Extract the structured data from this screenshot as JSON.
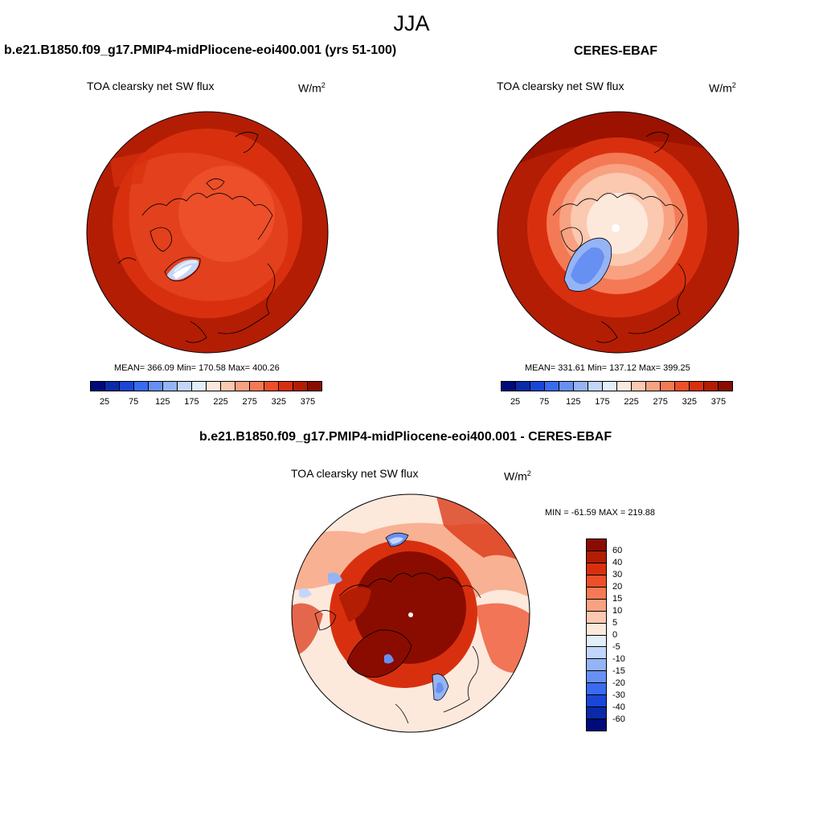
{
  "title": "JJA",
  "panels": [
    {
      "heading": "b.e21.B1850.f09_g17.PMIP4-midPliocene-eoi400.001 (yrs 51-100)",
      "variable": "TOA clearsky net SW flux",
      "units_base": "W/m",
      "units_exp": "2",
      "stats": "MEAN= 366.09  Min= 170.58  Max= 400.26"
    },
    {
      "heading": "CERES-EBAF",
      "variable": "TOA clearsky net SW flux",
      "units_base": "W/m",
      "units_exp": "2",
      "stats": "MEAN= 331.61  Min= 137.12  Max= 399.25"
    },
    {
      "heading": "b.e21.B1850.f09_g17.PMIP4-midPliocene-eoi400.001 - CERES-EBAF",
      "variable": "TOA clearsky net SW flux",
      "units_base": "W/m",
      "units_exp": "2",
      "stats": "MIN = -61.59 MAX = 219.88"
    }
  ],
  "abs_colorbar": {
    "colors": [
      "#000a7a",
      "#0a2aa8",
      "#1a46d8",
      "#3a6af0",
      "#6890f2",
      "#95b4f5",
      "#c2d6fa",
      "#e3eefb",
      "#fde8dc",
      "#fbc8b0",
      "#f8a282",
      "#f47a55",
      "#ec4f2a",
      "#d8300e",
      "#b31d04",
      "#8a0c00"
    ],
    "tick_labels": [
      "25",
      "75",
      "125",
      "175",
      "225",
      "275",
      "325",
      "375"
    ]
  },
  "diff_colorbar": {
    "colors": [
      "#8a0c00",
      "#b31d04",
      "#d8300e",
      "#ec4f2a",
      "#f47a55",
      "#f8a282",
      "#fbc8b0",
      "#fde8dc",
      "#e3eefb",
      "#c2d6fa",
      "#95b4f5",
      "#6890f2",
      "#3a6af0",
      "#1a46d8",
      "#0a2aa8",
      "#000a7a"
    ],
    "tick_labels": [
      "60",
      "40",
      "30",
      "20",
      "15",
      "10",
      "5",
      "0",
      "-5",
      "-10",
      "-15",
      "-20",
      "-30",
      "-40",
      "-60"
    ]
  }
}
